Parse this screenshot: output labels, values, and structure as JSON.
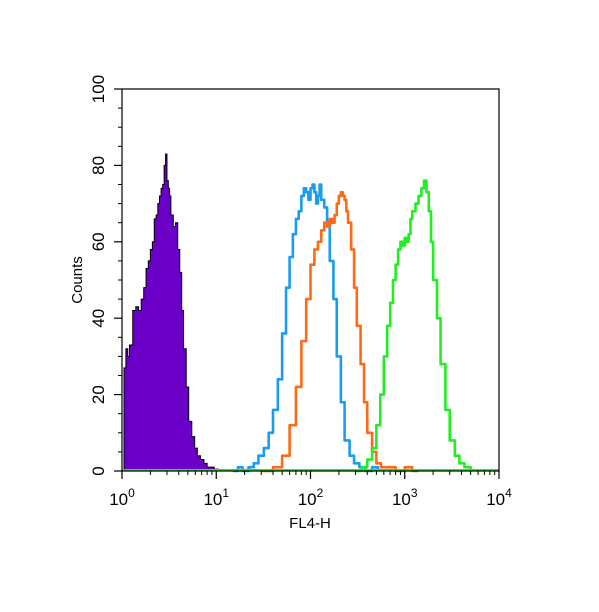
{
  "chart_data": {
    "type": "histogram",
    "title": "",
    "xlabel": "FL4-H",
    "ylabel": "Counts",
    "x_scale": "log",
    "xlim": [
      1,
      10000
    ],
    "ylim": [
      0,
      100
    ],
    "grid": false,
    "legend": "none",
    "x_ticks": [
      {
        "value": 1,
        "base": "10",
        "exp": "0"
      },
      {
        "value": 10,
        "base": "10",
        "exp": "1"
      },
      {
        "value": 100,
        "base": "10",
        "exp": "2"
      },
      {
        "value": 1000,
        "base": "10",
        "exp": "3"
      },
      {
        "value": 10000,
        "base": "10",
        "exp": "4"
      }
    ],
    "y_ticks": [
      {
        "value": 0,
        "label": "0"
      },
      {
        "value": 20,
        "label": "20"
      },
      {
        "value": 40,
        "label": "40"
      },
      {
        "value": 60,
        "label": "60"
      },
      {
        "value": 80,
        "label": "80"
      },
      {
        "value": 100,
        "label": "100"
      }
    ],
    "series": [
      {
        "color": "#6a00c8",
        "style": "filled",
        "x": [
          1,
          1.05,
          1.1,
          1.15,
          1.2,
          1.3,
          1.4,
          1.5,
          1.6,
          1.7,
          1.8,
          1.9,
          2.0,
          2.1,
          2.2,
          2.3,
          2.4,
          2.5,
          2.6,
          2.7,
          2.8,
          2.9,
          3.0,
          3.1,
          3.2,
          3.3,
          3.5,
          3.7,
          3.9,
          4.1,
          4.3,
          4.5,
          4.8,
          5.1,
          5.5,
          5.9,
          6.3,
          6.8,
          7.4,
          8.0,
          8.7,
          9.5,
          10.5
        ],
        "y": [
          0,
          27,
          32,
          30,
          33,
          42,
          43,
          42,
          45,
          48,
          53,
          55,
          58,
          60,
          66,
          67,
          70,
          72,
          74,
          75,
          80,
          83,
          76,
          74,
          72,
          67,
          64,
          65,
          58,
          52,
          42,
          32,
          22,
          13,
          9,
          6,
          4,
          3,
          2,
          1,
          1,
          0.5,
          0
        ]
      },
      {
        "color": "#1a9cf0",
        "style": "line",
        "x": [
          15,
          17,
          19,
          22,
          25,
          28,
          32,
          36,
          40,
          45,
          50,
          55,
          60,
          65,
          70,
          75,
          80,
          85,
          90,
          95,
          100,
          105,
          110,
          115,
          120,
          125,
          130,
          140,
          150,
          160,
          175,
          190,
          210,
          230,
          260,
          290,
          330,
          380,
          450,
          520
        ],
        "y": [
          0,
          1,
          0,
          1,
          2,
          4,
          6,
          10,
          16,
          24,
          36,
          48,
          56,
          62,
          66,
          68,
          72,
          74,
          73,
          71,
          74,
          75,
          73,
          70,
          72,
          75,
          71,
          69,
          65,
          55,
          45,
          30,
          18,
          8,
          4,
          2,
          1,
          0,
          1,
          0
        ]
      },
      {
        "color": "#ff6a18",
        "style": "line",
        "x": [
          30,
          40,
          50,
          60,
          70,
          80,
          90,
          100,
          110,
          120,
          130,
          140,
          150,
          160,
          170,
          180,
          190,
          200,
          210,
          220,
          230,
          240,
          250,
          270,
          290,
          310,
          340,
          370,
          400,
          450,
          500,
          560,
          650,
          800,
          1000,
          1200,
          1400
        ],
        "y": [
          0,
          1,
          4,
          12,
          22,
          34,
          45,
          54,
          58,
          60,
          63,
          65,
          64,
          66,
          65,
          67,
          70,
          72,
          73,
          72,
          71,
          68,
          65,
          58,
          48,
          38,
          28,
          18,
          10,
          5,
          2,
          1,
          1,
          0,
          1,
          0,
          0
        ]
      },
      {
        "color": "#22ee22",
        "style": "line",
        "x": [
          300,
          350,
          400,
          450,
          500,
          550,
          600,
          650,
          700,
          750,
          800,
          850,
          900,
          950,
          1000,
          1050,
          1100,
          1150,
          1200,
          1300,
          1400,
          1500,
          1600,
          1700,
          1800,
          1900,
          2000,
          2200,
          2400,
          2700,
          3000,
          3400,
          3800,
          4300,
          5000
        ],
        "y": [
          0,
          1,
          3,
          6,
          12,
          20,
          30,
          38,
          44,
          50,
          54,
          58,
          60,
          59,
          61,
          60,
          62,
          66,
          68,
          70,
          72,
          74,
          76,
          73,
          68,
          60,
          50,
          40,
          28,
          16,
          8,
          4,
          2,
          1,
          0
        ]
      }
    ]
  }
}
